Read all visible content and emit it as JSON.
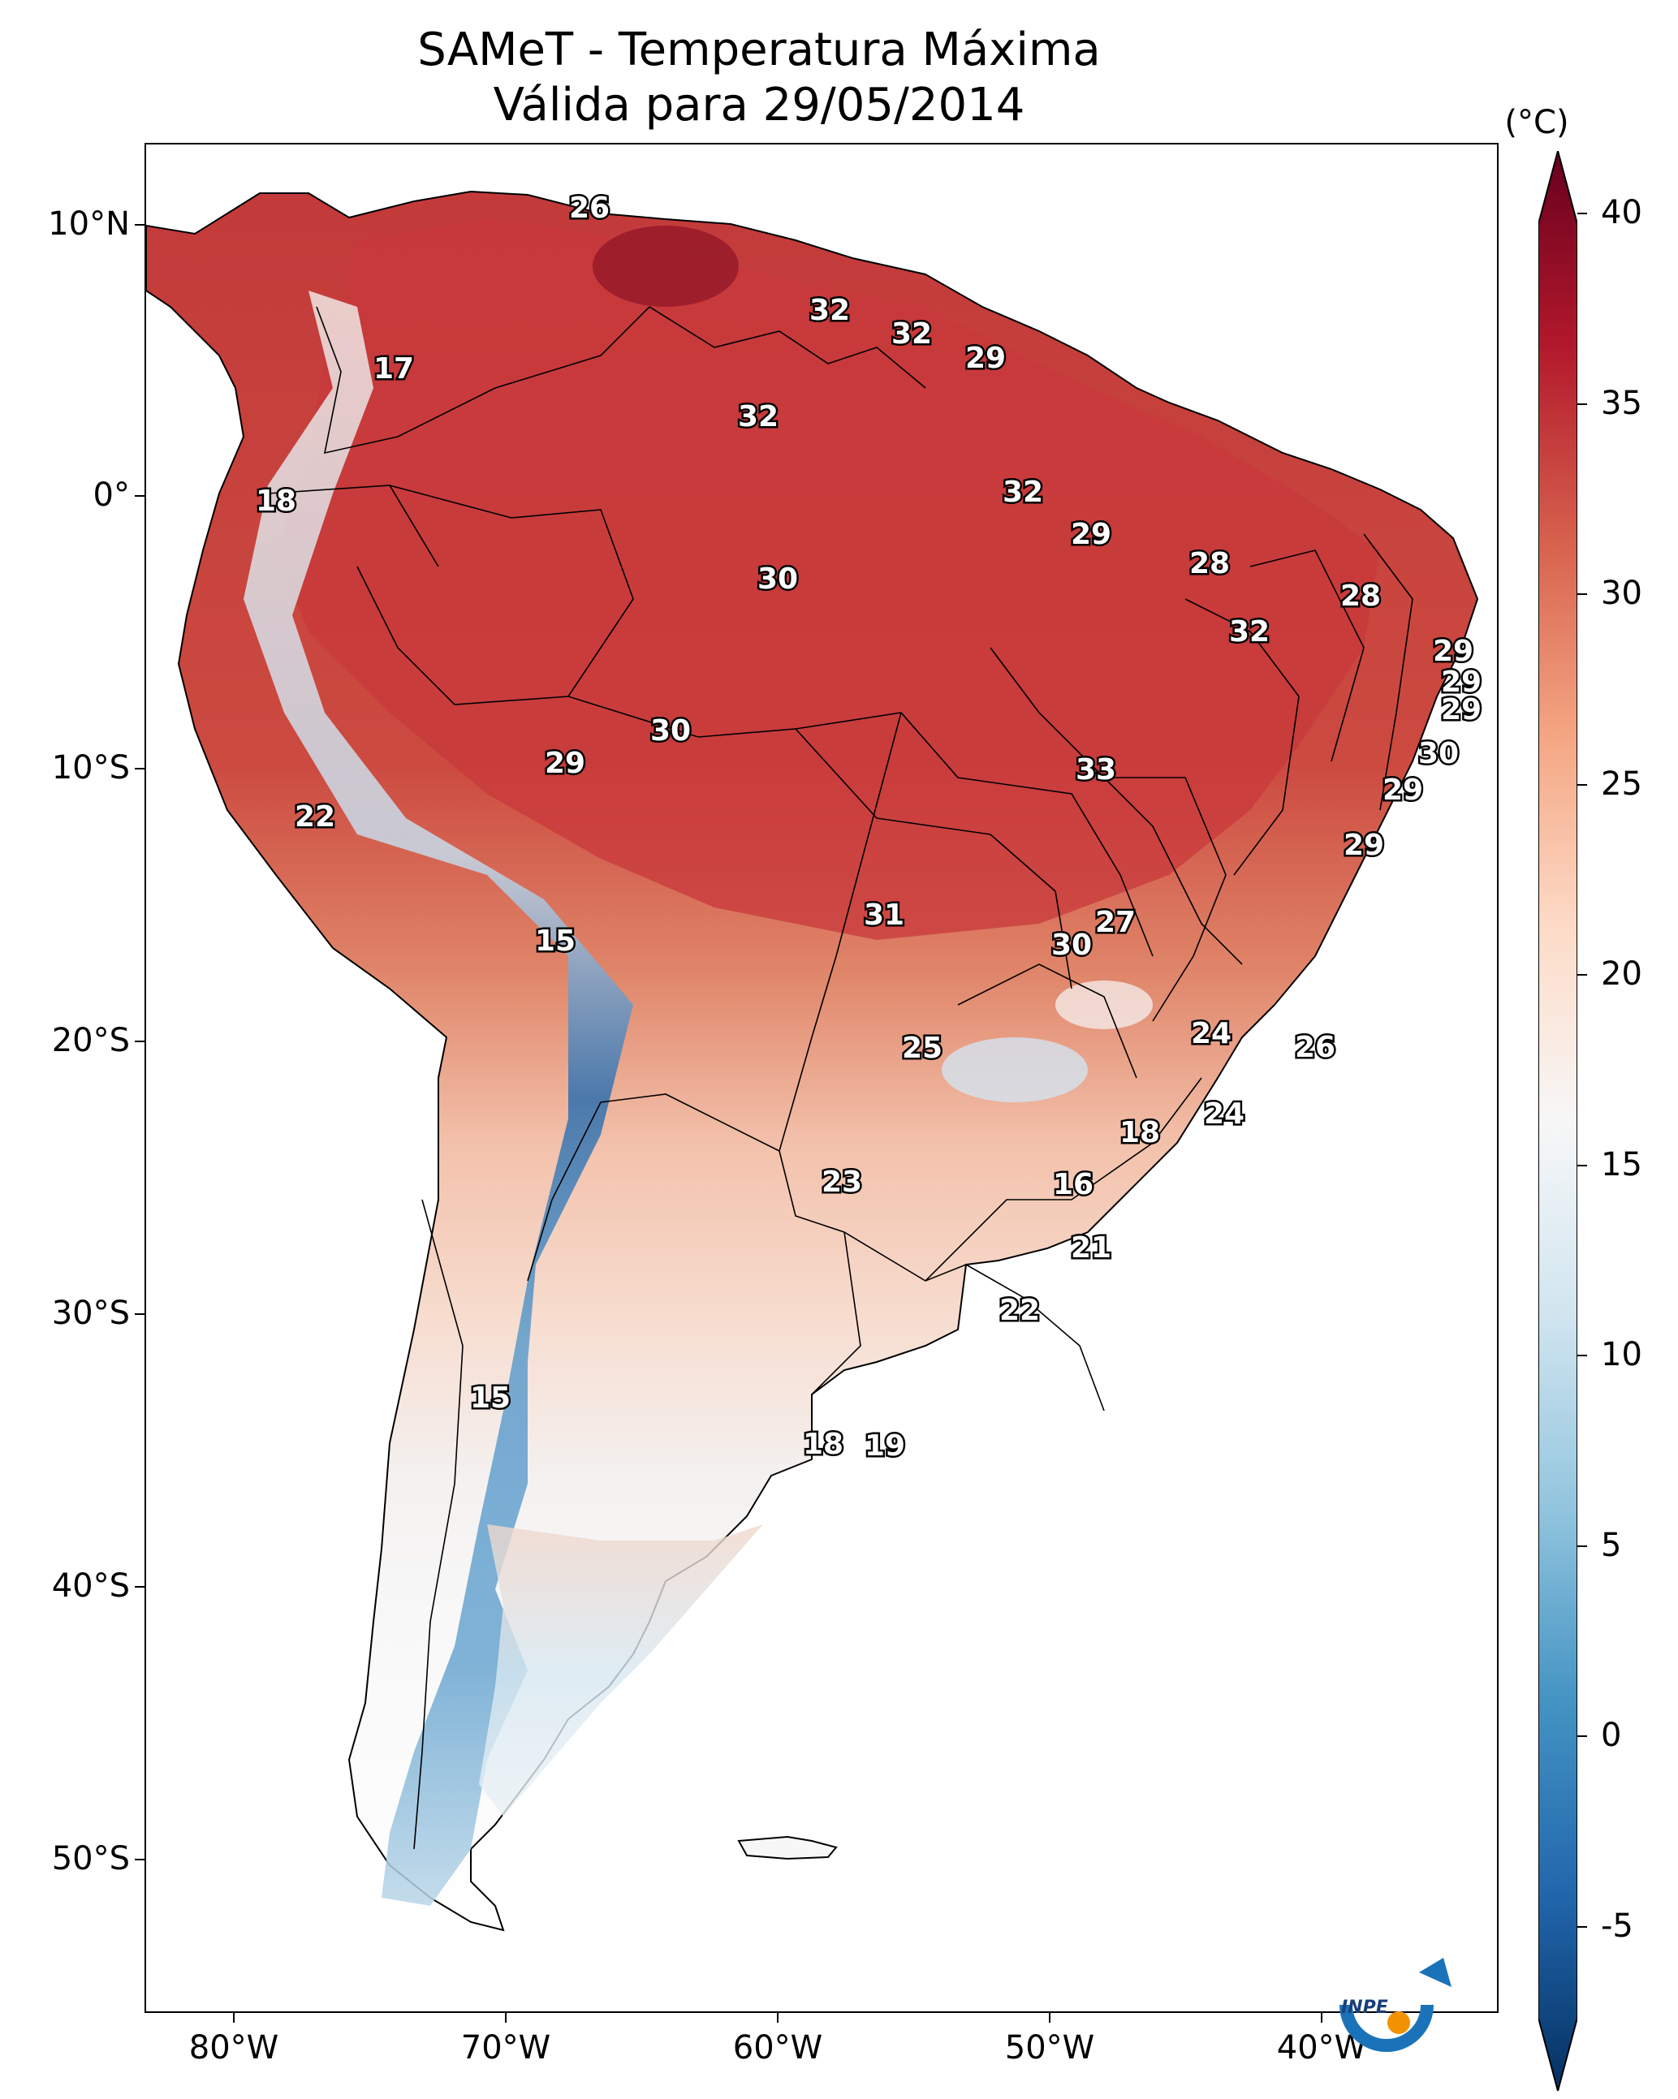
{
  "title": {
    "line1": "SAMeT - Temperatura Máxima",
    "line2": "Válida para 29/05/2014"
  },
  "axes": {
    "lon_ticks": [
      "80°W",
      "70°W",
      "60°W",
      "50°W",
      "40°W"
    ],
    "lat_ticks": [
      "10°N",
      "0°",
      "10°S",
      "20°S",
      "30°S",
      "40°S",
      "50°S"
    ]
  },
  "colorbar": {
    "unit": "(°C)",
    "ticks": [
      "40",
      "35",
      "30",
      "25",
      "20",
      "15",
      "10",
      "5",
      "0",
      "-5"
    ],
    "colors": [
      "#053061",
      "#2166ac",
      "#4393c3",
      "#92c5de",
      "#d1e5f0",
      "#f7f7f7",
      "#fddbc7",
      "#f4a582",
      "#d6604d",
      "#b2182b",
      "#67001f"
    ]
  },
  "isotherm_labels": [
    "26",
    "32",
    "32",
    "29",
    "17",
    "32",
    "18",
    "32",
    "29",
    "30",
    "28",
    "28",
    "32",
    "29",
    "29",
    "29",
    "30",
    "29",
    "33",
    "30",
    "29",
    "22",
    "29",
    "31",
    "27",
    "30",
    "15",
    "24",
    "26",
    "25",
    "18",
    "24",
    "23",
    "16",
    "21",
    "22",
    "15",
    "18",
    "19"
  ],
  "logo": {
    "text": "INPE"
  }
}
